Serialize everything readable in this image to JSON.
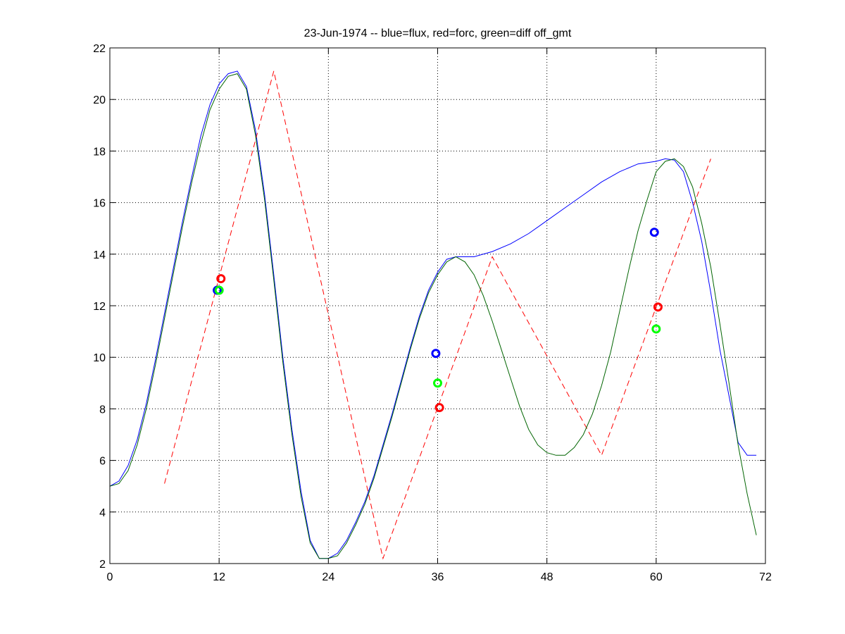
{
  "chart_data": {
    "type": "line",
    "title": "23-Jun-1974 -- blue=flux, red=forc, green=diff off_gmt",
    "xlabel": "",
    "ylabel": "",
    "xlim": [
      0,
      72
    ],
    "ylim": [
      2,
      22
    ],
    "xticks": [
      0,
      12,
      24,
      36,
      48,
      60,
      72
    ],
    "yticks": [
      2,
      4,
      6,
      8,
      10,
      12,
      14,
      16,
      18,
      20,
      22
    ],
    "grid": true,
    "legend": "none",
    "series": [
      {
        "color": "#0000ff",
        "style": "solid",
        "x": [
          0,
          1,
          2,
          3,
          4,
          5,
          6,
          7,
          8,
          9,
          10,
          11,
          12,
          13,
          14,
          15,
          16,
          17,
          18,
          19,
          20,
          21,
          22,
          23,
          24,
          25,
          26,
          27,
          28,
          29,
          30,
          31,
          32,
          33,
          34,
          35,
          36,
          37,
          38,
          39,
          40,
          42,
          44,
          46,
          48,
          50,
          52,
          54,
          56,
          58,
          60,
          61,
          62,
          63,
          64,
          65,
          66,
          67,
          68,
          69,
          70,
          71
        ],
        "y": [
          5.0,
          5.2,
          5.8,
          6.8,
          8.2,
          9.9,
          11.7,
          13.5,
          15.3,
          17.0,
          18.6,
          19.8,
          20.6,
          21.0,
          21.1,
          20.5,
          18.8,
          16.3,
          13.2,
          10.0,
          7.2,
          4.8,
          2.9,
          2.2,
          2.2,
          2.4,
          2.9,
          3.6,
          4.4,
          5.4,
          6.6,
          7.8,
          9.1,
          10.4,
          11.6,
          12.6,
          13.3,
          13.8,
          13.9,
          13.9,
          13.9,
          14.1,
          14.4,
          14.8,
          15.3,
          15.8,
          16.3,
          16.8,
          17.2,
          17.5,
          17.6,
          17.7,
          17.65,
          17.2,
          16.0,
          14.5,
          12.5,
          10.3,
          8.5,
          6.7,
          6.2,
          6.2
        ]
      },
      {
        "color": "#ff0000",
        "style": "dashed",
        "x": [
          6,
          18,
          30,
          42,
          54,
          66
        ],
        "y": [
          5.1,
          21.1,
          2.2,
          13.9,
          6.2,
          17.7
        ]
      },
      {
        "color": "#006400",
        "style": "solid",
        "x": [
          0,
          1,
          2,
          3,
          4,
          5,
          6,
          7,
          8,
          9,
          10,
          11,
          12,
          13,
          14,
          15,
          16,
          17,
          18,
          19,
          20,
          21,
          22,
          23,
          24,
          25,
          26,
          27,
          28,
          29,
          30,
          31,
          32,
          33,
          34,
          35,
          36,
          37,
          38,
          39,
          40,
          41,
          42,
          43,
          44,
          45,
          46,
          47,
          48,
          49,
          50,
          51,
          52,
          53,
          54,
          55,
          56,
          57,
          58,
          59,
          60,
          61,
          62,
          63,
          64,
          65,
          66,
          67,
          68,
          69,
          70,
          71
        ],
        "y": [
          5.0,
          5.1,
          5.6,
          6.6,
          8.0,
          9.7,
          11.5,
          13.3,
          15.1,
          16.8,
          18.3,
          19.6,
          20.4,
          20.9,
          21.0,
          20.4,
          18.6,
          16.1,
          13.0,
          9.8,
          7.0,
          4.6,
          2.8,
          2.2,
          2.2,
          2.3,
          2.8,
          3.5,
          4.3,
          5.3,
          6.5,
          7.7,
          9.0,
          10.3,
          11.5,
          12.5,
          13.2,
          13.7,
          13.9,
          13.7,
          13.2,
          12.4,
          11.4,
          10.3,
          9.2,
          8.1,
          7.2,
          6.6,
          6.3,
          6.2,
          6.2,
          6.5,
          7.0,
          7.8,
          8.9,
          10.2,
          11.8,
          13.4,
          14.9,
          16.1,
          17.2,
          17.6,
          17.7,
          17.4,
          16.6,
          15.2,
          13.5,
          11.3,
          9.0,
          6.6,
          4.7,
          3.1
        ]
      }
    ],
    "markers": [
      {
        "x": 11.8,
        "y": 12.6,
        "color": "#0000ff"
      },
      {
        "x": 12.0,
        "y": 12.6,
        "color": "#00ff00"
      },
      {
        "x": 12.2,
        "y": 13.05,
        "color": "#ff0000"
      },
      {
        "x": 35.8,
        "y": 10.15,
        "color": "#0000ff"
      },
      {
        "x": 36.0,
        "y": 9.0,
        "color": "#00ff00"
      },
      {
        "x": 36.2,
        "y": 8.05,
        "color": "#ff0000"
      },
      {
        "x": 59.8,
        "y": 14.85,
        "color": "#0000ff"
      },
      {
        "x": 60.0,
        "y": 11.1,
        "color": "#00ff00"
      },
      {
        "x": 60.2,
        "y": 11.95,
        "color": "#ff0000"
      }
    ]
  }
}
